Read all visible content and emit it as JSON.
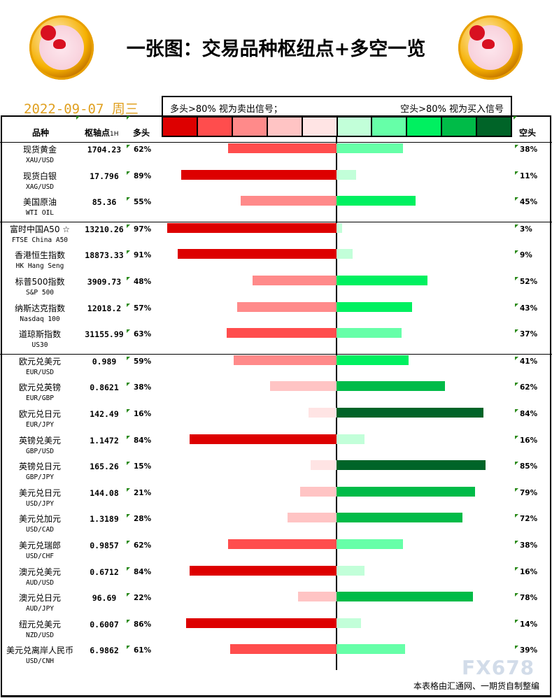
{
  "header": {
    "title": "一张图：交易品种枢纽点+多空一览",
    "date": "2022-09-07  周三"
  },
  "legend": {
    "left_text": "多头>80% 视为卖出信号；",
    "right_text": "空头>80% 视为买入信号",
    "long_colors": [
      "#dd0000",
      "#ff4d4d",
      "#ff8a8a",
      "#ffc4c4",
      "#ffe4e4"
    ],
    "short_colors": [
      "#c2ffd9",
      "#66ffa8",
      "#00f060",
      "#00bb48",
      "#006428"
    ]
  },
  "columns": {
    "name": "品种",
    "pivot": "枢轴点",
    "pivot_unit": "1H",
    "long": "多头",
    "short": "空头"
  },
  "rows": [
    {
      "cn": "现货黄金",
      "en": "XAU/USD",
      "pivot": "1704.23",
      "long": 62,
      "short": 38,
      "long_label": "62%",
      "short_label": "38%"
    },
    {
      "cn": "现货白银",
      "en": "XAG/USD",
      "pivot": "17.796",
      "long": 89,
      "short": 11,
      "long_label": "89%",
      "short_label": "11%"
    },
    {
      "cn": "美国原油",
      "en": "WTI OIL",
      "pivot": "85.36",
      "long": 55,
      "short": 45,
      "long_label": "55%",
      "short_label": "45%"
    },
    {
      "cn": "富时中国A50 ☆",
      "en": "FTSE China A50",
      "pivot": "13210.26",
      "long": 97,
      "short": 3,
      "long_label": "97%",
      "short_label": "3%"
    },
    {
      "cn": "香港恒生指数",
      "en": "HK Hang Seng",
      "pivot": "18873.33",
      "long": 91,
      "short": 9,
      "long_label": "91%",
      "short_label": "9%"
    },
    {
      "cn": "标普500指数",
      "en": "S&P 500",
      "pivot": "3909.73",
      "long": 48,
      "short": 52,
      "long_label": "48%",
      "short_label": "52%"
    },
    {
      "cn": "纳斯达克指数",
      "en": "Nasdaq 100",
      "pivot": "12018.2",
      "long": 57,
      "short": 43,
      "long_label": "57%",
      "short_label": "43%"
    },
    {
      "cn": "道琼斯指数",
      "en": "US30",
      "pivot": "31155.99",
      "long": 63,
      "short": 37,
      "long_label": "63%",
      "short_label": "37%"
    },
    {
      "cn": "欧元兑美元",
      "en": "EUR/USD",
      "pivot": "0.989",
      "long": 59,
      "short": 41,
      "long_label": "59%",
      "short_label": "41%"
    },
    {
      "cn": "欧元兑英镑",
      "en": "EUR/GBP",
      "pivot": "0.8621",
      "long": 38,
      "short": 62,
      "long_label": "38%",
      "short_label": "62%"
    },
    {
      "cn": "欧元兑日元",
      "en": "EUR/JPY",
      "pivot": "142.49",
      "long": 16,
      "short": 84,
      "long_label": "16%",
      "short_label": "84%"
    },
    {
      "cn": "英镑兑美元",
      "en": "GBP/USD",
      "pivot": "1.1472",
      "long": 84,
      "short": 16,
      "long_label": "84%",
      "short_label": "16%"
    },
    {
      "cn": "英镑兑日元",
      "en": "GBP/JPY",
      "pivot": "165.26",
      "long": 15,
      "short": 85,
      "long_label": "15%",
      "short_label": "85%"
    },
    {
      "cn": "美元兑日元",
      "en": "USD/JPY",
      "pivot": "144.08",
      "long": 21,
      "short": 79,
      "long_label": "21%",
      "short_label": "79%"
    },
    {
      "cn": "美元兑加元",
      "en": "USD/CAD",
      "pivot": "1.3189",
      "long": 28,
      "short": 72,
      "long_label": "28%",
      "short_label": "72%"
    },
    {
      "cn": "美元兑瑞郎",
      "en": "USD/CHF",
      "pivot": "0.9857",
      "long": 62,
      "short": 38,
      "long_label": "62%",
      "short_label": "38%"
    },
    {
      "cn": "澳元兑美元",
      "en": "AUD/USD",
      "pivot": "0.6712",
      "long": 84,
      "short": 16,
      "long_label": "84%",
      "short_label": "16%"
    },
    {
      "cn": "澳元兑日元",
      "en": "AUD/JPY",
      "pivot": "96.69",
      "long": 22,
      "short": 78,
      "long_label": "22%",
      "short_label": "78%"
    },
    {
      "cn": "纽元兑美元",
      "en": "NZD/USD",
      "pivot": "0.6007",
      "long": 86,
      "short": 14,
      "long_label": "86%",
      "short_label": "14%"
    },
    {
      "cn": "美元兑离岸人民币",
      "en": "USD/CNH",
      "pivot": "6.9862",
      "long": 61,
      "short": 39,
      "long_label": "61%",
      "short_label": "39%"
    }
  ],
  "group_breaks_after": [
    2,
    7
  ],
  "footer": {
    "credit": "本表格由汇通网、一期货自制整编",
    "watermark": "FX678"
  }
}
